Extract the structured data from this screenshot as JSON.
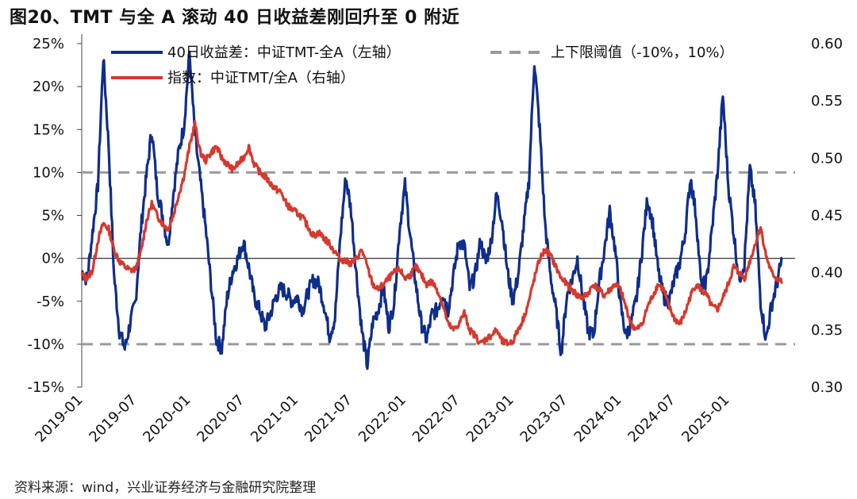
{
  "figure": {
    "title": "图20、TMT 与全 A 滚动 40 日收益差刚回升至 0 附近",
    "source": "资料来源：wind，兴业证券经济与金融研究院整理"
  },
  "chart_data": {
    "type": "line",
    "colors": {
      "diff": "#0f2d8a",
      "index": "#d43a2f",
      "threshold": "#9a9a9a",
      "zero": "#333333"
    },
    "x_tick_labels": [
      "2019-01",
      "2019-07",
      "2020-01",
      "2020-07",
      "2021-01",
      "2021-07",
      "2022-01",
      "2022-07",
      "2023-01",
      "2023-07",
      "2024-01",
      "2024-07",
      "2025-01"
    ],
    "y_left": {
      "ticks": [
        25,
        20,
        15,
        10,
        5,
        0,
        -5,
        -10,
        -15
      ],
      "tick_labels": [
        "25%",
        "20%",
        "15%",
        "10%",
        "5%",
        "0%",
        "-5%",
        "-10%",
        "-15%"
      ],
      "range": [
        -15,
        25
      ]
    },
    "y_right": {
      "ticks": [
        0.6,
        0.55,
        0.5,
        0.45,
        0.4,
        0.35,
        0.3
      ],
      "tick_labels": [
        "0.60",
        "0.55",
        "0.50",
        "0.45",
        "0.40",
        "0.35",
        "0.30"
      ],
      "range": [
        0.3,
        0.6
      ]
    },
    "thresholds": [
      10,
      -10
    ],
    "legend": {
      "diff": "40日收益差：中证TMT-全A（左轴）",
      "threshold": "上下限阈值（-10%，10%）",
      "index": "指数：中证TMT/全A（右轴）"
    },
    "series": [
      {
        "name": "40日收益差：中证TMT-全A（左轴）",
        "axis": "left",
        "t": [
          2019.0,
          2019.05,
          2019.1,
          2019.15,
          2019.2,
          2019.25,
          2019.3,
          2019.35,
          2019.4,
          2019.45,
          2019.5,
          2019.55,
          2019.6,
          2019.65,
          2019.7,
          2019.75,
          2019.8,
          2019.85,
          2019.9,
          2019.95,
          2020.0,
          2020.05,
          2020.1,
          2020.15,
          2020.2,
          2020.25,
          2020.3,
          2020.35,
          2020.4,
          2020.45,
          2020.5,
          2020.55,
          2020.6,
          2020.65,
          2020.7,
          2020.75,
          2020.8,
          2020.85,
          2020.9,
          2020.95,
          2021.0,
          2021.05,
          2021.1,
          2021.15,
          2021.2,
          2021.25,
          2021.3,
          2021.35,
          2021.4,
          2021.45,
          2021.5,
          2021.55,
          2021.6,
          2021.65,
          2021.7,
          2021.75,
          2021.8,
          2021.85,
          2021.9,
          2021.95,
          2022.0,
          2022.05,
          2022.1,
          2022.15,
          2022.2,
          2022.25,
          2022.3,
          2022.35,
          2022.4,
          2022.45,
          2022.5,
          2022.55,
          2022.6,
          2022.65,
          2022.7,
          2022.75,
          2022.8,
          2022.85,
          2022.9,
          2022.95,
          2023.0,
          2023.05,
          2023.1,
          2023.15,
          2023.2,
          2023.25,
          2023.3,
          2023.35,
          2023.4,
          2023.45,
          2023.5,
          2023.55,
          2023.6,
          2023.65,
          2023.7,
          2023.75,
          2023.8,
          2023.85,
          2023.9,
          2023.95,
          2024.0,
          2024.05,
          2024.1,
          2024.15,
          2024.2,
          2024.25,
          2024.3,
          2024.35,
          2024.4,
          2024.45,
          2024.5,
          2024.55,
          2024.6,
          2024.65,
          2024.7,
          2024.75,
          2024.8,
          2024.85,
          2024.9,
          2024.95,
          2025.0,
          2025.05,
          2025.1,
          2025.15,
          2025.2,
          2025.25,
          2025.3,
          2025.35,
          2025.4,
          2025.45,
          2025.5
        ],
        "values": [
          -1.5,
          -2.5,
          3.0,
          8.5,
          23.5,
          13.0,
          -2.0,
          -8.5,
          -10.5,
          -7.5,
          -5.0,
          3.5,
          9.5,
          15.0,
          8.0,
          5.0,
          1.5,
          7.5,
          12.5,
          15.5,
          24.0,
          14.5,
          9.0,
          3.5,
          -3.0,
          -9.5,
          -10.5,
          -4.5,
          -1.5,
          0.0,
          2.0,
          -1.0,
          -4.5,
          -6.0,
          -8.0,
          -6.5,
          -4.5,
          -3.5,
          -4.0,
          -5.0,
          -4.5,
          -6.0,
          -4.0,
          -2.5,
          -3.0,
          -5.5,
          -9.0,
          -7.0,
          2.5,
          9.5,
          5.5,
          -2.0,
          -8.5,
          -12.5,
          -7.5,
          -6.0,
          -3.5,
          -8.0,
          -5.0,
          3.5,
          8.5,
          2.5,
          -3.0,
          -7.5,
          -9.5,
          -6.5,
          -6.0,
          -4.0,
          -6.0,
          -2.0,
          2.0,
          1.5,
          -3.5,
          -2.0,
          2.0,
          -0.5,
          2.0,
          7.5,
          4.5,
          -1.5,
          -5.0,
          -2.0,
          3.5,
          9.0,
          23.0,
          15.0,
          4.0,
          -2.0,
          -6.0,
          -11.0,
          -4.5,
          -2.5,
          0.0,
          -4.5,
          -8.5,
          -9.0,
          -3.0,
          1.0,
          5.5,
          1.0,
          -5.5,
          -9.0,
          -7.5,
          -4.5,
          1.0,
          7.0,
          4.0,
          -1.5,
          -4.5,
          -5.0,
          -2.5,
          -0.5,
          3.0,
          9.5,
          5.0,
          -3.5,
          -2.5,
          3.5,
          10.0,
          19.0,
          8.5,
          3.0,
          -2.5,
          -0.5,
          10.5,
          6.0,
          -5.0,
          -9.5,
          -5.5,
          -3.0,
          0.0
        ]
      },
      {
        "name": "指数：中证TMT/全A（右轴）",
        "axis": "right",
        "t": [
          2019.0,
          2019.05,
          2019.1,
          2019.15,
          2019.2,
          2019.25,
          2019.3,
          2019.35,
          2019.4,
          2019.45,
          2019.5,
          2019.55,
          2019.6,
          2019.65,
          2019.7,
          2019.75,
          2019.8,
          2019.85,
          2019.9,
          2019.95,
          2020.0,
          2020.05,
          2020.1,
          2020.15,
          2020.2,
          2020.25,
          2020.3,
          2020.35,
          2020.4,
          2020.45,
          2020.5,
          2020.55,
          2020.6,
          2020.65,
          2020.7,
          2020.75,
          2020.8,
          2020.85,
          2020.9,
          2020.95,
          2021.0,
          2021.05,
          2021.1,
          2021.15,
          2021.2,
          2021.25,
          2021.3,
          2021.35,
          2021.4,
          2021.45,
          2021.5,
          2021.55,
          2021.6,
          2021.65,
          2021.7,
          2021.75,
          2021.8,
          2021.85,
          2021.9,
          2021.95,
          2022.0,
          2022.05,
          2022.1,
          2022.15,
          2022.2,
          2022.25,
          2022.3,
          2022.35,
          2022.4,
          2022.45,
          2022.5,
          2022.55,
          2022.6,
          2022.65,
          2022.7,
          2022.75,
          2022.8,
          2022.85,
          2022.9,
          2022.95,
          2023.0,
          2023.05,
          2023.1,
          2023.15,
          2023.2,
          2023.25,
          2023.3,
          2023.35,
          2023.4,
          2023.45,
          2023.5,
          2023.55,
          2023.6,
          2023.65,
          2023.7,
          2023.75,
          2023.8,
          2023.85,
          2023.9,
          2023.95,
          2024.0,
          2024.05,
          2024.1,
          2024.15,
          2024.2,
          2024.25,
          2024.3,
          2024.35,
          2024.4,
          2024.45,
          2024.5,
          2024.55,
          2024.6,
          2024.65,
          2024.7,
          2024.75,
          2024.8,
          2024.85,
          2024.9,
          2024.95,
          2025.0,
          2025.05,
          2025.1,
          2025.15,
          2025.2,
          2025.25,
          2025.3,
          2025.35,
          2025.4,
          2025.45,
          2025.5
        ],
        "values": [
          0.398,
          0.395,
          0.402,
          0.428,
          0.443,
          0.438,
          0.42,
          0.41,
          0.405,
          0.402,
          0.403,
          0.418,
          0.445,
          0.46,
          0.45,
          0.443,
          0.438,
          0.45,
          0.468,
          0.485,
          0.51,
          0.53,
          0.505,
          0.498,
          0.505,
          0.51,
          0.5,
          0.495,
          0.49,
          0.495,
          0.5,
          0.51,
          0.495,
          0.488,
          0.484,
          0.478,
          0.473,
          0.47,
          0.46,
          0.455,
          0.452,
          0.448,
          0.44,
          0.432,
          0.435,
          0.43,
          0.425,
          0.418,
          0.412,
          0.41,
          0.408,
          0.412,
          0.42,
          0.405,
          0.39,
          0.385,
          0.39,
          0.395,
          0.4,
          0.403,
          0.395,
          0.398,
          0.405,
          0.398,
          0.39,
          0.392,
          0.385,
          0.372,
          0.355,
          0.35,
          0.355,
          0.365,
          0.35,
          0.345,
          0.338,
          0.342,
          0.345,
          0.35,
          0.34,
          0.338,
          0.34,
          0.35,
          0.36,
          0.375,
          0.395,
          0.412,
          0.42,
          0.415,
          0.405,
          0.395,
          0.39,
          0.385,
          0.38,
          0.378,
          0.382,
          0.39,
          0.385,
          0.38,
          0.385,
          0.39,
          0.385,
          0.37,
          0.355,
          0.35,
          0.355,
          0.37,
          0.38,
          0.39,
          0.385,
          0.37,
          0.36,
          0.355,
          0.365,
          0.38,
          0.39,
          0.385,
          0.38,
          0.37,
          0.368,
          0.378,
          0.39,
          0.405,
          0.4,
          0.395,
          0.41,
          0.425,
          0.44,
          0.415,
          0.4,
          0.395,
          0.392
        ]
      }
    ]
  }
}
